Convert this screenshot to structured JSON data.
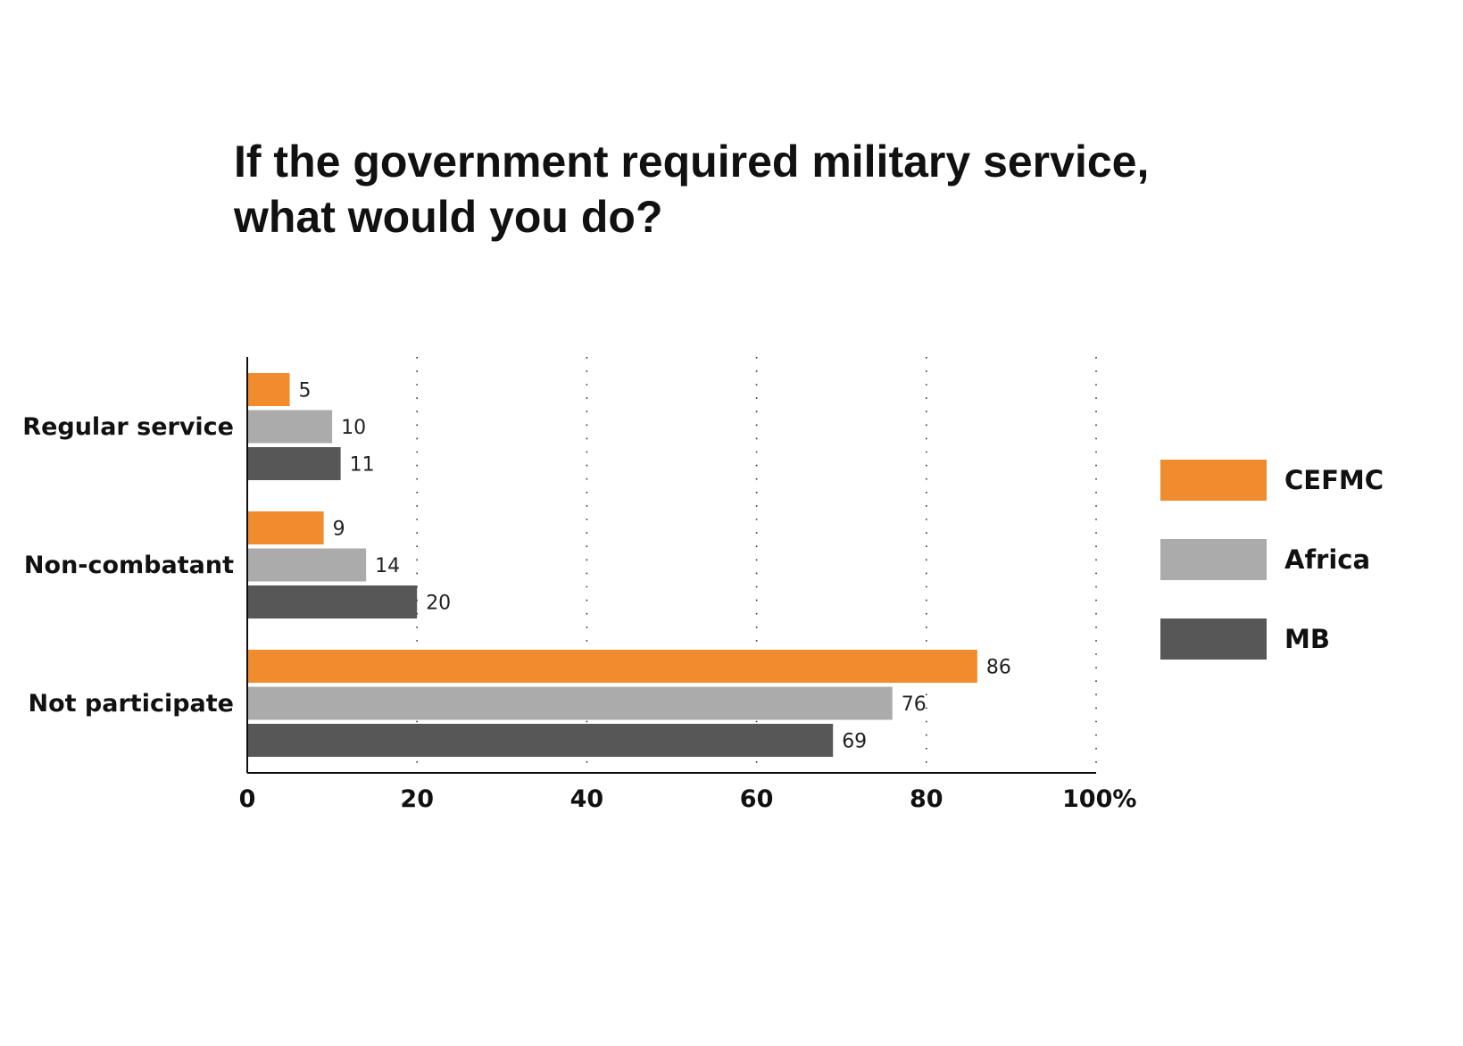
{
  "chart_data": {
    "type": "bar",
    "orientation": "horizontal",
    "title_lines": [
      "If the government required military service,",
      "what would you do?"
    ],
    "categories": [
      "Regular service",
      "Non-combatant",
      "Not participate"
    ],
    "series": [
      {
        "name": "CEFMC",
        "color": "#F08C2E",
        "values": [
          5,
          9,
          86
        ]
      },
      {
        "name": "Africa",
        "color": "#ABABAB",
        "values": [
          10,
          14,
          76
        ]
      },
      {
        "name": "MB",
        "color": "#575757",
        "values": [
          11,
          20,
          69
        ]
      }
    ],
    "xticks": [
      0,
      20,
      40,
      60,
      80,
      100
    ],
    "xtick_labels": [
      "0",
      "20",
      "40",
      "60",
      "80",
      "100%"
    ],
    "xlim": [
      0,
      100
    ],
    "grid": "vertical dotted",
    "legend_position": "right"
  }
}
